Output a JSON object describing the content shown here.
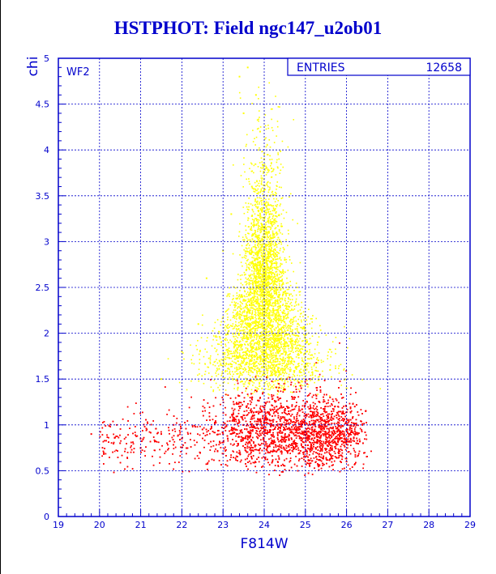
{
  "title": "HSTPHOT: Field ngc147_u2ob01",
  "chart_data": {
    "type": "scatter",
    "title": "HSTPHOT: Field ngc147_u2ob01",
    "xlabel": "F814W",
    "ylabel": "chi",
    "xlim": [
      19,
      29
    ],
    "ylim": [
      0,
      5
    ],
    "xticks": [
      "19",
      "20",
      "21",
      "22",
      "23",
      "24",
      "25",
      "26",
      "27",
      "28",
      "29"
    ],
    "yticks": [
      "0",
      "0.5",
      "1",
      "1.5",
      "2",
      "2.5",
      "3",
      "3.5",
      "4",
      "4.5",
      "5"
    ],
    "grid": true,
    "panel_label": "WF2",
    "stats": {
      "label": "ENTRIES",
      "value": "12658"
    },
    "series": [
      {
        "color": "#ffff00",
        "description_points": [
          [
            23.4,
            4.8
          ],
          [
            23.6,
            4.9
          ],
          [
            23.8,
            4.6
          ],
          [
            23.5,
            4.4
          ],
          [
            23.9,
            4.2
          ],
          [
            24.0,
            3.9
          ],
          [
            23.7,
            3.6
          ],
          [
            24.1,
            3.4
          ],
          [
            23.2,
            3.3
          ],
          [
            24.3,
            3.1
          ],
          [
            23.0,
            2.9
          ],
          [
            24.5,
            2.8
          ],
          [
            22.6,
            2.6
          ],
          [
            24.8,
            2.5
          ],
          [
            23.3,
            2.3
          ],
          [
            25.0,
            2.2
          ],
          [
            22.4,
            2.1
          ],
          [
            24.2,
            2.0
          ],
          [
            25.3,
            1.9
          ],
          [
            22.0,
            1.8
          ],
          [
            24.6,
            1.7
          ],
          [
            25.6,
            1.6
          ],
          [
            21.5,
            1.5
          ],
          [
            23.9,
            1.5
          ],
          [
            26.0,
            1.4
          ]
        ]
      },
      {
        "color": "#ff0000",
        "description_points": [
          [
            19.8,
            0.9
          ],
          [
            20.5,
            0.8
          ],
          [
            21.0,
            0.75
          ],
          [
            21.5,
            0.9
          ],
          [
            22.0,
            0.85
          ],
          [
            22.5,
            0.95
          ],
          [
            23.0,
            0.9
          ],
          [
            23.5,
            1.0
          ],
          [
            24.0,
            1.05
          ],
          [
            24.3,
            1.2
          ],
          [
            24.5,
            1.0
          ],
          [
            24.8,
            0.95
          ],
          [
            25.2,
            1.1
          ],
          [
            25.5,
            0.9
          ],
          [
            25.8,
            1.0
          ],
          [
            26.1,
            0.85
          ],
          [
            26.4,
            0.8
          ],
          [
            24.4,
            1.5
          ],
          [
            24.9,
            1.4
          ],
          [
            25.6,
            1.3
          ],
          [
            26.2,
            1.2
          ],
          [
            24.2,
            0.6
          ],
          [
            25.0,
            0.6
          ],
          [
            26.0,
            0.6
          ],
          [
            21.8,
            1.0
          ]
        ]
      }
    ]
  }
}
